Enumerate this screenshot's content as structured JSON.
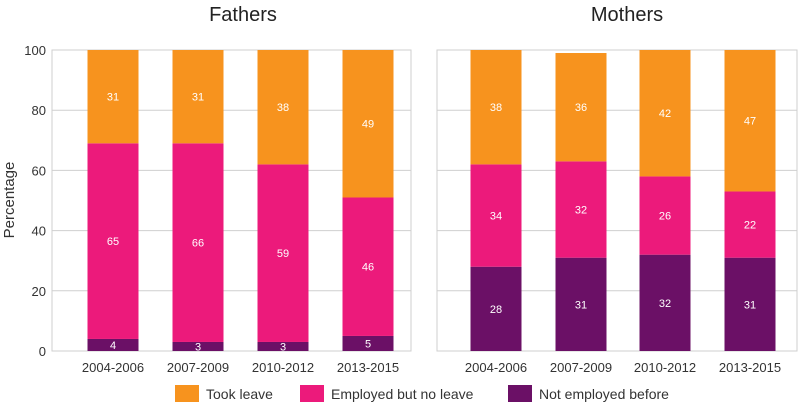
{
  "chart_data": {
    "type": "bar",
    "stacked": true,
    "ylabel": "Percentage",
    "ylim": [
      0,
      100
    ],
    "yticks": [
      0,
      20,
      40,
      60,
      80,
      100
    ],
    "grid": true,
    "legend_position": "bottom",
    "categories": [
      "2004-2006",
      "2007-2009",
      "2010-2012",
      "2013-2015"
    ],
    "legend": [
      {
        "name": "Took leave",
        "color": "#f7931e"
      },
      {
        "name": "Employed but no leave",
        "color": "#ec1a7b"
      },
      {
        "name": "Not employed before",
        "color": "#6b1066"
      }
    ],
    "panels": [
      {
        "title": "Fathers",
        "series": [
          {
            "name": "Not employed before",
            "values": [
              4,
              3,
              3,
              5
            ],
            "labels": [
              "4",
              "3",
              "3",
              "5"
            ]
          },
          {
            "name": "Employed but no leave",
            "values": [
              65,
              66,
              59,
              46
            ],
            "labels": [
              "65",
              "66",
              "59",
              "46"
            ]
          },
          {
            "name": "Took leave",
            "values": [
              31,
              31,
              38,
              49
            ],
            "labels": [
              "31",
              "31",
              "38",
              "49"
            ]
          }
        ]
      },
      {
        "title": "Mothers",
        "series": [
          {
            "name": "Not employed before",
            "values": [
              28,
              31,
              32,
              31
            ],
            "labels": [
              "28",
              "31",
              "32",
              "31"
            ]
          },
          {
            "name": "Employed but no leave",
            "values": [
              34,
              32,
              26,
              22
            ],
            "labels": [
              "34",
              "32",
              "26",
              "22"
            ]
          },
          {
            "name": "Took leave",
            "values": [
              38,
              36,
              42,
              47
            ],
            "labels": [
              "38",
              "36",
              "42",
              "47"
            ]
          }
        ]
      }
    ]
  }
}
